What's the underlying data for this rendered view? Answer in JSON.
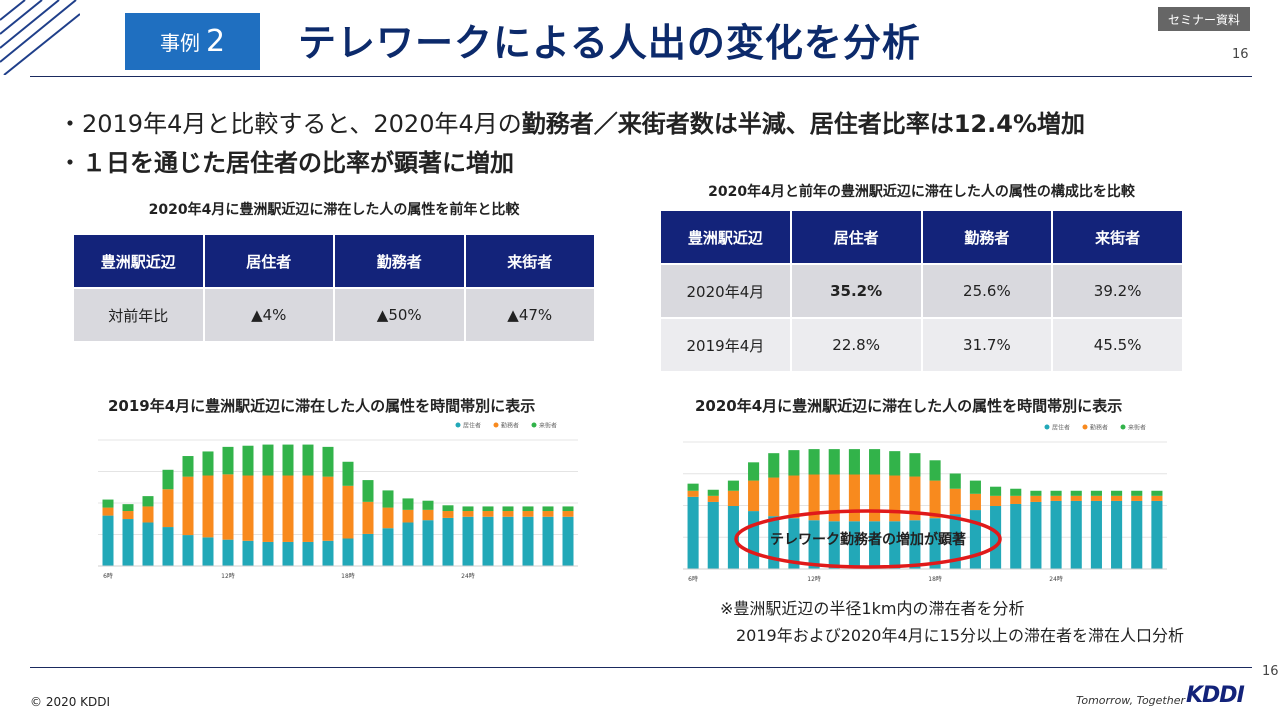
{
  "header": {
    "case_label": "事例",
    "case_number": "2",
    "title": "テレワークによる人出の変化を分析",
    "seminar_badge": "セミナー資料",
    "page_number": "16"
  },
  "bullets": [
    {
      "prefix": "・2019年4月と比較すると、2020年4月の",
      "bold": "勤務者／来街者数は半減、居住者比率は12.4%増加"
    },
    {
      "prefix": "・",
      "bold": "１日を通じた居住者の比率が顕著に増加"
    }
  ],
  "table_left": {
    "title": "2020年4月に豊洲駅近辺に滞在した人の属性を前年と比較",
    "headers": [
      "豊洲駅近辺",
      "居住者",
      "勤務者",
      "来街者"
    ],
    "row": {
      "label": "対前年比",
      "resident": "▲4%",
      "worker": "▲50%",
      "visitor": "▲47%"
    }
  },
  "table_right": {
    "title": "2020年4月と前年の豊洲駅近辺に滞在した人の属性の構成比を比較",
    "headers": [
      "豊洲駅近辺",
      "居住者",
      "勤務者",
      "来街者"
    ],
    "rows": [
      {
        "label": "2020年4月",
        "resident": "35.2%",
        "worker": "25.6%",
        "visitor": "39.2%"
      },
      {
        "label": "2019年4月",
        "resident": "22.8%",
        "worker": "31.7%",
        "visitor": "45.5%"
      }
    ]
  },
  "chart_data": [
    {
      "type": "bar",
      "stacked": true,
      "title": "2019年4月に豊洲駅近辺に滞在した人の属性を時間帯別に表示",
      "legend": [
        "居住者",
        "勤務者",
        "来街者"
      ],
      "legend_position": "top-right",
      "colors": [
        "#22a8b8",
        "#f88a1e",
        "#32b34a"
      ],
      "tick_labels": [
        "6時",
        "12時",
        "18時",
        "24時"
      ],
      "tick_positions": [
        0,
        6,
        12,
        18
      ],
      "grid": true,
      "ylim": [
        0,
        110
      ],
      "series": [
        {
          "name": "居住者",
          "values": [
            44,
            41,
            38,
            34,
            27,
            25,
            23,
            22,
            21,
            21,
            21,
            22,
            24,
            28,
            33,
            38,
            40,
            42,
            43,
            43,
            43,
            43,
            43,
            43
          ]
        },
        {
          "name": "勤務者",
          "values": [
            7,
            7,
            14,
            33,
            51,
            54,
            57,
            57,
            58,
            58,
            58,
            56,
            46,
            28,
            18,
            11,
            9,
            6,
            5,
            5,
            5,
            5,
            5,
            5
          ]
        },
        {
          "name": "来街者",
          "values": [
            7,
            6,
            9,
            17,
            18,
            21,
            24,
            26,
            27,
            27,
            27,
            26,
            21,
            19,
            15,
            10,
            8,
            5,
            4,
            4,
            4,
            4,
            4,
            4
          ]
        }
      ]
    },
    {
      "type": "bar",
      "stacked": true,
      "title": "2020年4月に豊洲駅近辺に滞在した人の属性を時間帯別に表示",
      "legend": [
        "居住者",
        "勤務者",
        "来街者"
      ],
      "legend_position": "top-right",
      "colors": [
        "#22a8b8",
        "#f88a1e",
        "#32b34a"
      ],
      "tick_labels": [
        "6時",
        "12時",
        "18時",
        "24時"
      ],
      "tick_positions": [
        0,
        6,
        12,
        18
      ],
      "grid": true,
      "ylim": [
        0,
        125
      ],
      "series": [
        {
          "name": "居住者",
          "values": [
            71,
            66,
            62,
            57,
            52,
            50,
            48,
            47,
            47,
            47,
            47,
            48,
            50,
            54,
            58,
            62,
            64,
            66,
            67,
            67,
            67,
            67,
            67,
            67
          ]
        },
        {
          "name": "勤務者",
          "values": [
            6,
            6,
            15,
            30,
            38,
            42,
            45,
            46,
            46,
            46,
            45,
            43,
            37,
            25,
            16,
            10,
            8,
            6,
            5,
            5,
            5,
            5,
            5,
            5
          ]
        },
        {
          "name": "来街者",
          "values": [
            7,
            6,
            10,
            18,
            24,
            25,
            25,
            25,
            25,
            25,
            24,
            23,
            20,
            15,
            13,
            9,
            7,
            5,
            5,
            5,
            5,
            5,
            5,
            5
          ]
        }
      ],
      "annotation": "テレワーク勤務者の増加が顕著"
    }
  ],
  "notes": [
    "※豊洲駅近辺の半径1km内の滞在者を分析",
    "2019年および2020年4月に15分以上の滞在者を滞在人口分析"
  ],
  "footer": {
    "copyright": "© 2020 KDDI",
    "page_number": "16",
    "tagline": "Tomorrow, Together",
    "logo": "KDDI"
  }
}
